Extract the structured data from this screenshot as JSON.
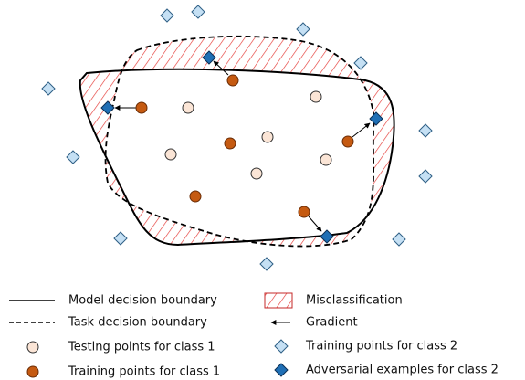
{
  "legend": {
    "items": [
      {
        "label": "Model decision boundary"
      },
      {
        "label": "Task decision boundary"
      },
      {
        "label": "Testing points for class 1"
      },
      {
        "label": "Training points for class 1"
      },
      {
        "label": "Misclassification"
      },
      {
        "label": "Gradient"
      },
      {
        "label": "Training points for class 2"
      },
      {
        "label": "Adversarial examples for class 2"
      }
    ]
  }
}
